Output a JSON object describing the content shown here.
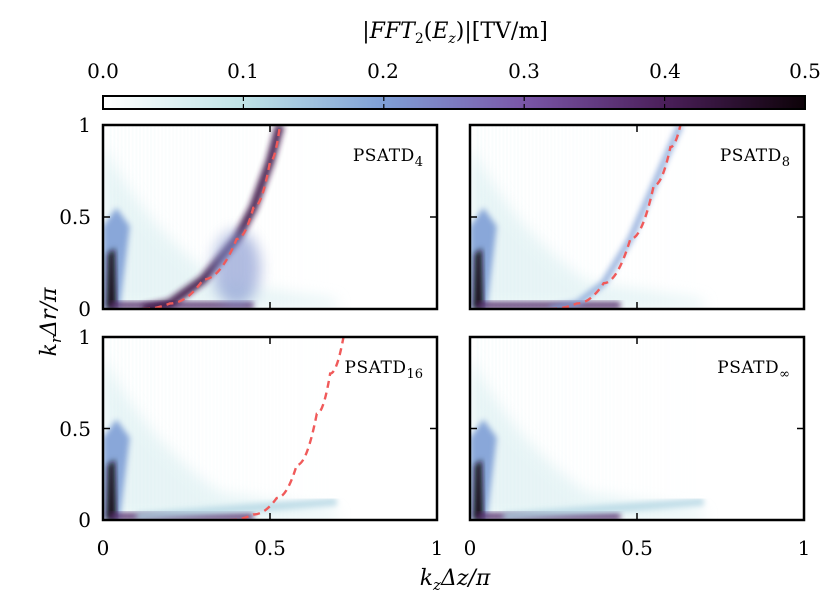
{
  "colorbar": {
    "title": "|FFT₂(Eᵤ)|[TV/m]",
    "title_parts": {
      "pre": "|",
      "fft": "FFT",
      "sub2": "2",
      "open": "(",
      "e": "E",
      "subz": "z",
      "close": ")|",
      "unit": "[TV/m]"
    },
    "ticks": [
      "0.0",
      "0.1",
      "0.2",
      "0.3",
      "0.4",
      "0.5"
    ],
    "range": [
      0.0,
      0.5
    ],
    "stops": [
      {
        "v": 0.0,
        "color": "#ffffff"
      },
      {
        "v": 0.1,
        "color": "#bfe3e6"
      },
      {
        "v": 0.2,
        "color": "#7f9fd6"
      },
      {
        "v": 0.3,
        "color": "#7a56a8"
      },
      {
        "v": 0.4,
        "color": "#4b1f5a"
      },
      {
        "v": 0.5,
        "color": "#0d0208"
      }
    ]
  },
  "axes": {
    "xlabel": "k_z Δz/π",
    "xlabel_parts": {
      "k": "k",
      "sub": "z",
      "rest": "Δz/π"
    },
    "ylabel": "k_r Δr/π",
    "ylabel_parts": {
      "k": "k",
      "sub": "r",
      "rest": "Δr/π"
    },
    "xticks": [
      "0",
      "0.5",
      "1"
    ],
    "yticks": [
      "0",
      "0.5",
      "1"
    ]
  },
  "curve_color": "#f05a5a",
  "chart_data": [
    {
      "type": "heatmap",
      "panel": "PSATD_4",
      "label_main": "PSATD",
      "label_sub": "4",
      "xlim": [
        0,
        1
      ],
      "ylim": [
        0,
        1
      ],
      "dispersion_curve": {
        "x": [
          0.12,
          0.2,
          0.3,
          0.4,
          0.45,
          0.5,
          0.53
        ],
        "y": [
          0.0,
          0.03,
          0.16,
          0.38,
          0.55,
          0.8,
          1.0
        ]
      }
    },
    {
      "type": "heatmap",
      "panel": "PSATD_8",
      "label_main": "PSATD",
      "label_sub": "8",
      "xlim": [
        0,
        1
      ],
      "ylim": [
        0,
        1
      ],
      "dispersion_curve": {
        "x": [
          0.24,
          0.32,
          0.4,
          0.48,
          0.55,
          0.6,
          0.63
        ],
        "y": [
          0.0,
          0.03,
          0.14,
          0.38,
          0.67,
          0.88,
          1.0
        ]
      }
    },
    {
      "type": "heatmap",
      "panel": "PSATD_16",
      "label_main": "PSATD",
      "label_sub": "16",
      "xlim": [
        0,
        1
      ],
      "ylim": [
        0,
        1
      ],
      "dispersion_curve": {
        "x": [
          0.38,
          0.45,
          0.52,
          0.58,
          0.64,
          0.68,
          0.72
        ],
        "y": [
          0.0,
          0.03,
          0.12,
          0.3,
          0.58,
          0.8,
          1.0
        ]
      }
    },
    {
      "type": "heatmap",
      "panel": "PSATD_∞",
      "label_main": "PSATD",
      "label_sub": "∞",
      "xlim": [
        0,
        1
      ],
      "ylim": [
        0,
        1
      ]
    }
  ]
}
